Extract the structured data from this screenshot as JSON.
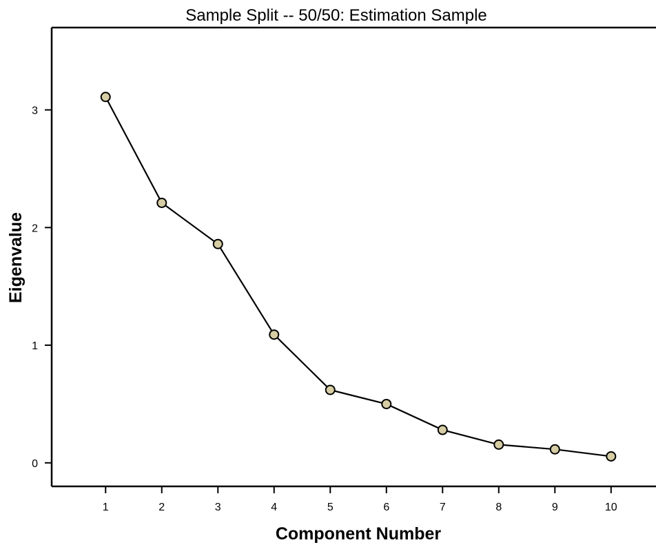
{
  "chart_data": {
    "type": "line",
    "title": "Sample Split -- 50/50: Estimation Sample",
    "xlabel": "Component Number",
    "ylabel": "Eigenvalue",
    "x": [
      1,
      2,
      3,
      4,
      5,
      6,
      7,
      8,
      9,
      10
    ],
    "series": [
      {
        "values": [
          3.11,
          2.21,
          1.86,
          1.09,
          0.62,
          0.5,
          0.28,
          0.155,
          0.115,
          0.055
        ]
      }
    ],
    "xlim": [
      0.04,
      10.8
    ],
    "ylim": [
      -0.2,
      3.7
    ],
    "xticks": [
      1,
      2,
      3,
      4,
      5,
      6,
      7,
      8,
      9,
      10
    ],
    "yticks": [
      0,
      1,
      2,
      3
    ],
    "grid": false,
    "colors": {
      "line": "#000000",
      "marker_fill": "#d6cda4",
      "marker_stroke": "#000000"
    }
  }
}
